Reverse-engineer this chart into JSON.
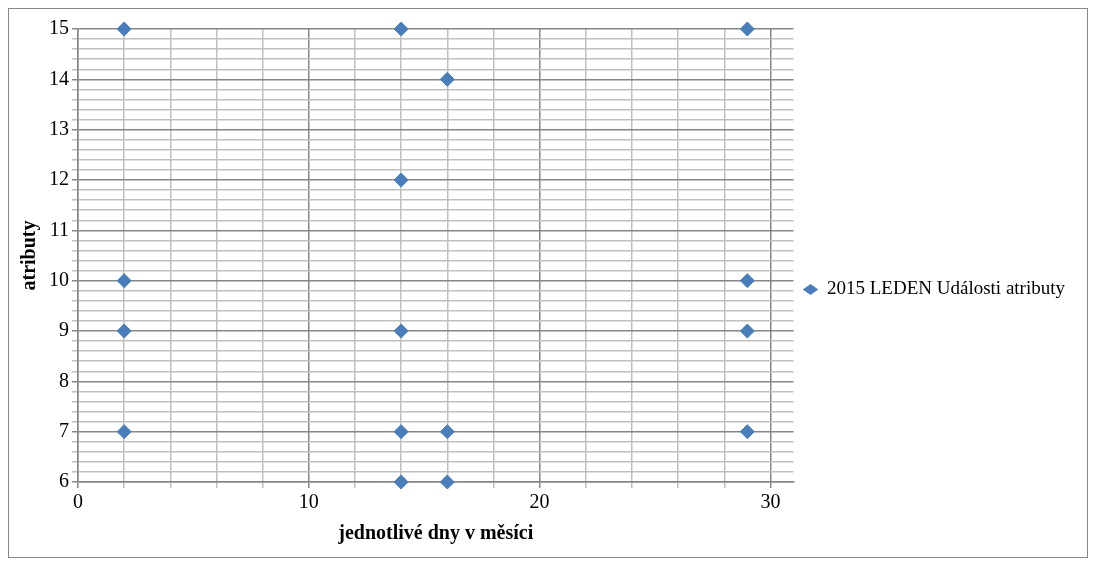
{
  "chart_data": {
    "type": "scatter",
    "xlabel": "jednotlivé dny v měsíci",
    "ylabel": "atributy",
    "series": [
      {
        "name": "2015 LEDEN Události atributy",
        "color": "#4a7ebb",
        "x": [
          2,
          14,
          29,
          16,
          14,
          2,
          29,
          2,
          14,
          29,
          2,
          14,
          16,
          29,
          14,
          16
        ],
        "values": [
          15,
          15,
          15,
          14,
          12,
          10,
          10,
          9,
          9,
          9,
          7,
          7,
          7,
          7,
          6,
          6
        ]
      }
    ],
    "xlim": [
      0,
      31
    ],
    "xticks": [
      0,
      {
        "value": 2,
        "label": null
      },
      {
        "value": 4,
        "label": null
      },
      {
        "value": 6,
        "label": null
      },
      {
        "value": 8,
        "label": null
      },
      10,
      {
        "value": 12,
        "label": null
      },
      {
        "value": 14,
        "label": null
      },
      {
        "value": 16,
        "label": null
      },
      {
        "value": 18,
        "label": null
      },
      20,
      {
        "value": 22,
        "label": null
      },
      {
        "value": 24,
        "label": null
      },
      {
        "value": 26,
        "label": null
      },
      {
        "value": 28,
        "label": null
      },
      30
    ],
    "ylim": [
      6,
      15
    ],
    "yticks": [
      6,
      {
        "value": 6.2,
        "label": null
      },
      {
        "value": 6.4,
        "label": null
      },
      {
        "value": 6.6,
        "label": null
      },
      {
        "value": 6.8,
        "label": null
      },
      7,
      {
        "value": 7.2,
        "label": null
      },
      {
        "value": 7.4,
        "label": null
      },
      {
        "value": 7.6,
        "label": null
      },
      {
        "value": 7.8,
        "label": null
      },
      8,
      {
        "value": 8.2,
        "label": null
      },
      {
        "value": 8.4,
        "label": null
      },
      {
        "value": 8.6,
        "label": null
      },
      {
        "value": 8.8,
        "label": null
      },
      9,
      {
        "value": 9.2,
        "label": null
      },
      {
        "value": 9.4,
        "label": null
      },
      {
        "value": 9.6,
        "label": null
      },
      {
        "value": 9.8,
        "label": null
      },
      10,
      {
        "value": 10.2,
        "label": null
      },
      {
        "value": 10.4,
        "label": null
      },
      {
        "value": 10.6,
        "label": null
      },
      {
        "value": 10.8,
        "label": null
      },
      11,
      {
        "value": 11.2,
        "label": null
      },
      {
        "value": 11.4,
        "label": null
      },
      {
        "value": 11.6,
        "label": null
      },
      {
        "value": 11.8,
        "label": null
      },
      12,
      {
        "value": 12.2,
        "label": null
      },
      {
        "value": 12.4,
        "label": null
      },
      {
        "value": 12.6,
        "label": null
      },
      {
        "value": 12.8,
        "label": null
      },
      13,
      {
        "value": 13.2,
        "label": null
      },
      {
        "value": 13.4,
        "label": null
      },
      {
        "value": 13.6,
        "label": null
      },
      {
        "value": 13.8,
        "label": null
      },
      14,
      {
        "value": 14.2,
        "label": null
      },
      {
        "value": 14.4,
        "label": null
      },
      {
        "value": 14.6,
        "label": null
      },
      {
        "value": 14.8,
        "label": null
      },
      15
    ],
    "grid": true,
    "legend": "right",
    "marker": "diamond"
  }
}
